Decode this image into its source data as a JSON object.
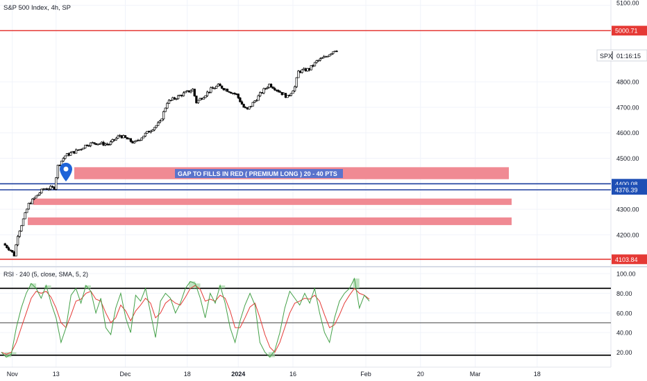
{
  "header": {
    "title": "S&P 500 Index, 4h, SP"
  },
  "symbol_badge": {
    "symbol": "SPX",
    "countdown": "01:16:15"
  },
  "annotation": {
    "text": "GAP TO FILLS IN RED   ( PREMIUM LONG ) 20  - 40 PTS"
  },
  "rsi_label": "RSI · 240 (5, close, SMA, 5, 2)",
  "colors": {
    "up_candle": "#ffffff",
    "down_candle": "#000000",
    "red_line": "#e53935",
    "blue_line": "#1e3f9e",
    "gap_zone": "#f08a93",
    "rsi_line": "#43a047",
    "rsi_ma": "#e53935",
    "rsi_fill": "#a5d6a7",
    "label_blue": "#1e4fb5",
    "label_red": "#e53935",
    "marker": "#1e63d8"
  },
  "chart_data": [
    {
      "type": "candlestick",
      "title": "S&P 500 Index, 4h, SP",
      "y_ticks": [
        4200,
        4300,
        4400,
        4500,
        4600,
        4700,
        4800,
        5100
      ],
      "y_tick_labels": [
        "4200.00",
        "4300.00",
        "4400.00",
        "4500.00",
        "4600.00",
        "4700.00",
        "4800.00",
        "5100.00"
      ],
      "ylim": [
        4090,
        5100
      ],
      "x_tick_labels": [
        "Nov",
        "13",
        "Dec",
        "18",
        "2024",
        "16",
        "Feb",
        "20",
        "Mar",
        "18"
      ],
      "horizontal_lines": [
        {
          "value": 5000.71,
          "label": "5000.71",
          "color": "red"
        },
        {
          "value": 4400.08,
          "label": "4400.08",
          "color": "blue"
        },
        {
          "value": 4376.39,
          "label": "4376.39",
          "color": "blue"
        },
        {
          "value": 4103.84,
          "label": "4103.84",
          "color": "red"
        }
      ],
      "gap_zones": [
        {
          "low": 4418,
          "high": 4465
        },
        {
          "low": 4317,
          "high": 4342
        },
        {
          "low": 4238,
          "high": 4268
        }
      ],
      "price_path": [
        [
          "Oct 30",
          4165
        ],
        [
          "Nov 1",
          4140
        ],
        [
          "Nov 2",
          4120
        ],
        [
          "Nov 3",
          4200
        ],
        [
          "Nov 6",
          4320
        ],
        [
          "Nov 8",
          4350
        ],
        [
          "Nov 10",
          4380
        ],
        [
          "Nov 13",
          4385
        ],
        [
          "Nov 14",
          4470
        ],
        [
          "Nov 16",
          4510
        ],
        [
          "Nov 20",
          4535
        ],
        [
          "Nov 22",
          4555
        ],
        [
          "Nov 24",
          4560
        ],
        [
          "Nov 28",
          4555
        ],
        [
          "Dec 1",
          4590
        ],
        [
          "Dec 5",
          4560
        ],
        [
          "Dec 8",
          4595
        ],
        [
          "Dec 12",
          4640
        ],
        [
          "Dec 14",
          4720
        ],
        [
          "Dec 18",
          4750
        ],
        [
          "Dec 21",
          4770
        ],
        [
          "Dec 22",
          4720
        ],
        [
          "Dec 26",
          4770
        ],
        [
          "Dec 28",
          4785
        ],
        [
          "Jan 2",
          4750
        ],
        [
          "Jan 4",
          4700
        ],
        [
          "Jan 5",
          4690
        ],
        [
          "Jan 9",
          4760
        ],
        [
          "Jan 11",
          4790
        ],
        [
          "Jan 16",
          4740
        ],
        [
          "Jan 18",
          4780
        ],
        [
          "Jan 19",
          4840
        ],
        [
          "Jan 22",
          4850
        ],
        [
          "Jan 24",
          4880
        ],
        [
          "Jan 26",
          4895
        ],
        [
          "Jan 29",
          4925
        ]
      ]
    },
    {
      "type": "line",
      "title": "RSI · 240 (5, close, SMA, 5, 2)",
      "y_ticks": [
        20,
        40,
        60,
        80,
        100
      ],
      "y_tick_labels": [
        "20.00",
        "40.00",
        "60.00",
        "80.00",
        "100.00"
      ],
      "ylim": [
        15,
        103
      ],
      "horizontal_levels": [
        85,
        50,
        17
      ],
      "series": [
        {
          "values": [
            20,
            15,
            18,
            45,
            65,
            80,
            90,
            85,
            75,
            88,
            70,
            55,
            30,
            45,
            78,
            85,
            70,
            88,
            82,
            60,
            75,
            45,
            38,
            65,
            80,
            55,
            40,
            78,
            72,
            85,
            60,
            35,
            72,
            80,
            75,
            60,
            70,
            85,
            92,
            90,
            75,
            55,
            80,
            70,
            88,
            70,
            45,
            30,
            52,
            68,
            80,
            68,
            30,
            20,
            15,
            22,
            40,
            65,
            82,
            75,
            68,
            80,
            70,
            85,
            60,
            40,
            30,
            55,
            72,
            80,
            85,
            95,
            65,
            78,
            72
          ]
        },
        {
          "values": [
            20,
            18,
            20,
            30,
            45,
            60,
            75,
            82,
            80,
            82,
            76,
            65,
            50,
            45,
            58,
            72,
            74,
            80,
            82,
            74,
            72,
            60,
            50,
            55,
            68,
            62,
            52,
            62,
            68,
            75,
            70,
            55,
            60,
            70,
            74,
            70,
            68,
            76,
            85,
            88,
            84,
            72,
            74,
            72,
            78,
            75,
            62,
            45,
            45,
            55,
            66,
            70,
            55,
            38,
            25,
            20,
            30,
            45,
            60,
            70,
            72,
            75,
            74,
            78,
            72,
            58,
            45,
            48,
            58,
            70,
            78,
            85,
            80,
            78,
            74
          ]
        }
      ]
    }
  ]
}
